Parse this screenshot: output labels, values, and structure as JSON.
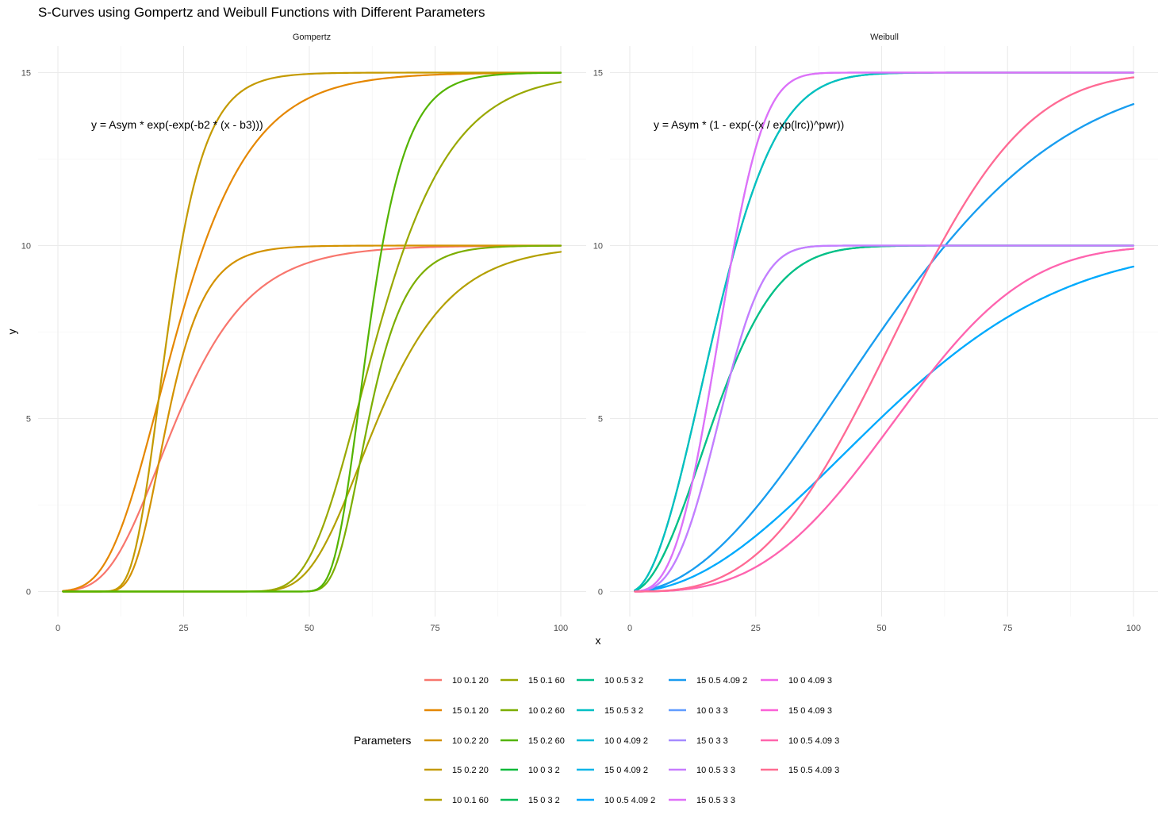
{
  "chart_data": {
    "type": "line",
    "title": "S-Curves using Gompertz and Weibull Functions with Different Parameters",
    "xlabel": "x",
    "ylabel": "y",
    "xlim": [
      1,
      100
    ],
    "ylim": [
      0,
      15
    ],
    "x_ticks": [
      "0",
      "25",
      "50",
      "75",
      "100"
    ],
    "y_ticks": [
      "0",
      "5",
      "10",
      "15"
    ],
    "x_tick_values": [
      0,
      25,
      50,
      75,
      100
    ],
    "y_tick_values": [
      0,
      5,
      10,
      15
    ],
    "legend_title": "Parameters",
    "legend_position": "bottom",
    "panels": [
      {
        "name": "Gompertz",
        "formula": "y = Asym * exp(-exp(-b2 * (x - b3)))",
        "series": [
          {
            "name": "10 0.1 20",
            "color": "#F8766D",
            "model": "gompertz",
            "asym": 10,
            "b2": 0.1,
            "b3": 20
          },
          {
            "name": "15 0.1 20",
            "color": "#E58700",
            "model": "gompertz",
            "asym": 15,
            "b2": 0.1,
            "b3": 20
          },
          {
            "name": "10 0.2 20",
            "color": "#D39200",
            "model": "gompertz",
            "asym": 10,
            "b2": 0.2,
            "b3": 20
          },
          {
            "name": "15 0.2 20",
            "color": "#C49A00",
            "model": "gompertz",
            "asym": 15,
            "b2": 0.2,
            "b3": 20
          },
          {
            "name": "10 0.1 60",
            "color": "#B3A000",
            "model": "gompertz",
            "asym": 10,
            "b2": 0.1,
            "b3": 60
          },
          {
            "name": "15 0.1 60",
            "color": "#99A800",
            "model": "gompertz",
            "asym": 15,
            "b2": 0.1,
            "b3": 60
          },
          {
            "name": "10 0.2 60",
            "color": "#7CAE00",
            "model": "gompertz",
            "asym": 10,
            "b2": 0.2,
            "b3": 60
          },
          {
            "name": "15 0.2 60",
            "color": "#53B400",
            "model": "gompertz",
            "asym": 15,
            "b2": 0.2,
            "b3": 60
          }
        ]
      },
      {
        "name": "Weibull",
        "formula": "y = Asym * (1 - exp(-(x / exp(lrc))^pwr))",
        "series": [
          {
            "name": "10 0 3 2",
            "color": "#00B938",
            "model": "weibull",
            "asym": 10,
            "drop": 0,
            "lrc": 3,
            "pwr": 2
          },
          {
            "name": "15 0 3 2",
            "color": "#00BC56",
            "model": "weibull",
            "asym": 15,
            "drop": 0,
            "lrc": 3,
            "pwr": 2
          },
          {
            "name": "10 0.5 3 2",
            "color": "#00C08B",
            "model": "weibull",
            "asym": 10,
            "drop": 0.5,
            "lrc": 3,
            "pwr": 2
          },
          {
            "name": "15 0.5 3 2",
            "color": "#00BFC4",
            "model": "weibull",
            "asym": 15,
            "drop": 0.5,
            "lrc": 3,
            "pwr": 2
          },
          {
            "name": "10 0 4.09 2",
            "color": "#00BCD8",
            "model": "weibull",
            "asym": 10,
            "drop": 0,
            "lrc": 4.09,
            "pwr": 2
          },
          {
            "name": "15 0 4.09 2",
            "color": "#00B5E8",
            "model": "weibull",
            "asym": 15,
            "drop": 0,
            "lrc": 4.09,
            "pwr": 2
          },
          {
            "name": "10 0.5 4.09 2",
            "color": "#00A9FF",
            "model": "weibull",
            "asym": 10,
            "drop": 0.5,
            "lrc": 4.09,
            "pwr": 2
          },
          {
            "name": "15 0.5 4.09 2",
            "color": "#1A9CF0",
            "model": "weibull",
            "asym": 15,
            "drop": 0.5,
            "lrc": 4.09,
            "pwr": 2
          },
          {
            "name": "10 0 3 3",
            "color": "#619CFF",
            "model": "weibull",
            "asym": 10,
            "drop": 0,
            "lrc": 3,
            "pwr": 3
          },
          {
            "name": "15 0 3 3",
            "color": "#A58AFF",
            "model": "weibull",
            "asym": 15,
            "drop": 0,
            "lrc": 3,
            "pwr": 3
          },
          {
            "name": "10 0.5 3 3",
            "color": "#C77CFF",
            "model": "weibull",
            "asym": 10,
            "drop": 0.5,
            "lrc": 3,
            "pwr": 3
          },
          {
            "name": "15 0.5 3 3",
            "color": "#DF70F8",
            "model": "weibull",
            "asym": 15,
            "drop": 0.5,
            "lrc": 3,
            "pwr": 3
          },
          {
            "name": "10 0 4.09 3",
            "color": "#F066EA",
            "model": "weibull",
            "asym": 10,
            "drop": 0,
            "lrc": 4.09,
            "pwr": 3
          },
          {
            "name": "15 0 4.09 3",
            "color": "#FB61D7",
            "model": "weibull",
            "asym": 15,
            "drop": 0,
            "lrc": 4.09,
            "pwr": 3
          },
          {
            "name": "10 0.5 4.09 3",
            "color": "#FF65AC",
            "model": "weibull",
            "asym": 10,
            "drop": 0.5,
            "lrc": 4.09,
            "pwr": 3
          },
          {
            "name": "15 0.5 4.09 3",
            "color": "#FF6C91",
            "model": "weibull",
            "asym": 15,
            "drop": 0.5,
            "lrc": 4.09,
            "pwr": 3
          }
        ]
      }
    ]
  }
}
